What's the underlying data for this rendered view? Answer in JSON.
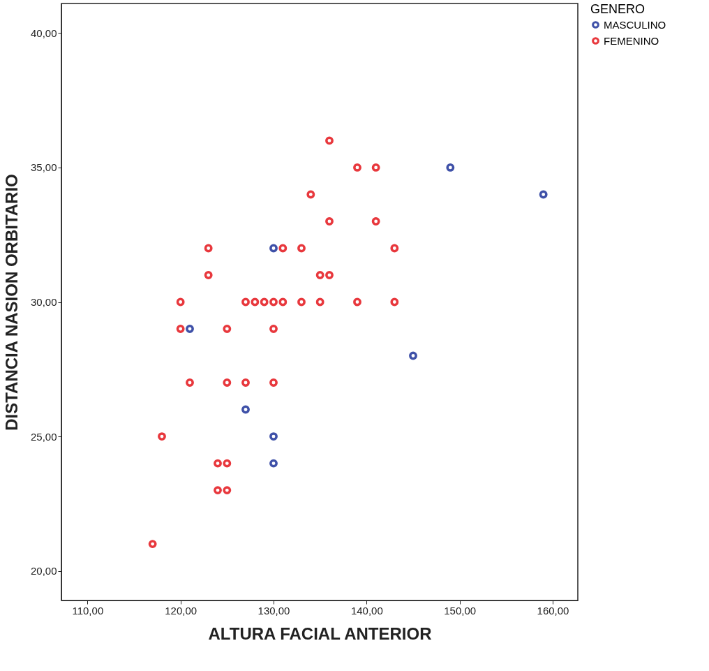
{
  "chart_data": {
    "type": "scatter",
    "xlabel": "ALTURA FACIAL ANTERIOR",
    "ylabel": "DISTANCIA NASION ORBITARIO",
    "legend_title": "GENERO",
    "legend": "top right",
    "marker": "circle",
    "grid": false,
    "xlim": [
      107.2,
      162.7
    ],
    "ylim": [
      18.9,
      41.1
    ],
    "xticks": [
      {
        "value": 110,
        "label": "110,00"
      },
      {
        "value": 120,
        "label": "120,00"
      },
      {
        "value": 130,
        "label": "130,00"
      },
      {
        "value": 140,
        "label": "140,00"
      },
      {
        "value": 150,
        "label": "150,00"
      },
      {
        "value": 160,
        "label": "160,00"
      }
    ],
    "yticks": [
      {
        "value": 20,
        "label": "20,00"
      },
      {
        "value": 25,
        "label": "25,00"
      },
      {
        "value": 30,
        "label": "30,00"
      },
      {
        "value": 35,
        "label": "35,00"
      },
      {
        "value": 40,
        "label": "40,00"
      }
    ],
    "series": [
      {
        "name": "MASCULINO",
        "color": "#3f51a8",
        "x": [
          130,
          121,
          127,
          130,
          130,
          145,
          149,
          159
        ],
        "values": [
          32,
          29,
          26,
          25,
          24,
          28,
          35,
          34
        ]
      },
      {
        "name": "FEMENINO",
        "color": "#e8383d",
        "x": [
          136,
          139,
          141,
          134,
          136,
          141,
          123,
          131,
          133,
          143,
          123,
          135,
          136,
          120,
          127,
          128,
          129,
          130,
          131,
          133,
          135,
          139,
          143,
          120,
          125,
          130,
          121,
          125,
          127,
          130,
          118,
          124,
          125,
          124,
          125,
          117
        ],
        "values": [
          36,
          35,
          35,
          34,
          33,
          33,
          32,
          32,
          32,
          32,
          31,
          31,
          31,
          30,
          30,
          30,
          30,
          30,
          30,
          30,
          30,
          30,
          30,
          29,
          29,
          29,
          27,
          27,
          27,
          27,
          25,
          24,
          24,
          23,
          23,
          21
        ]
      }
    ]
  }
}
